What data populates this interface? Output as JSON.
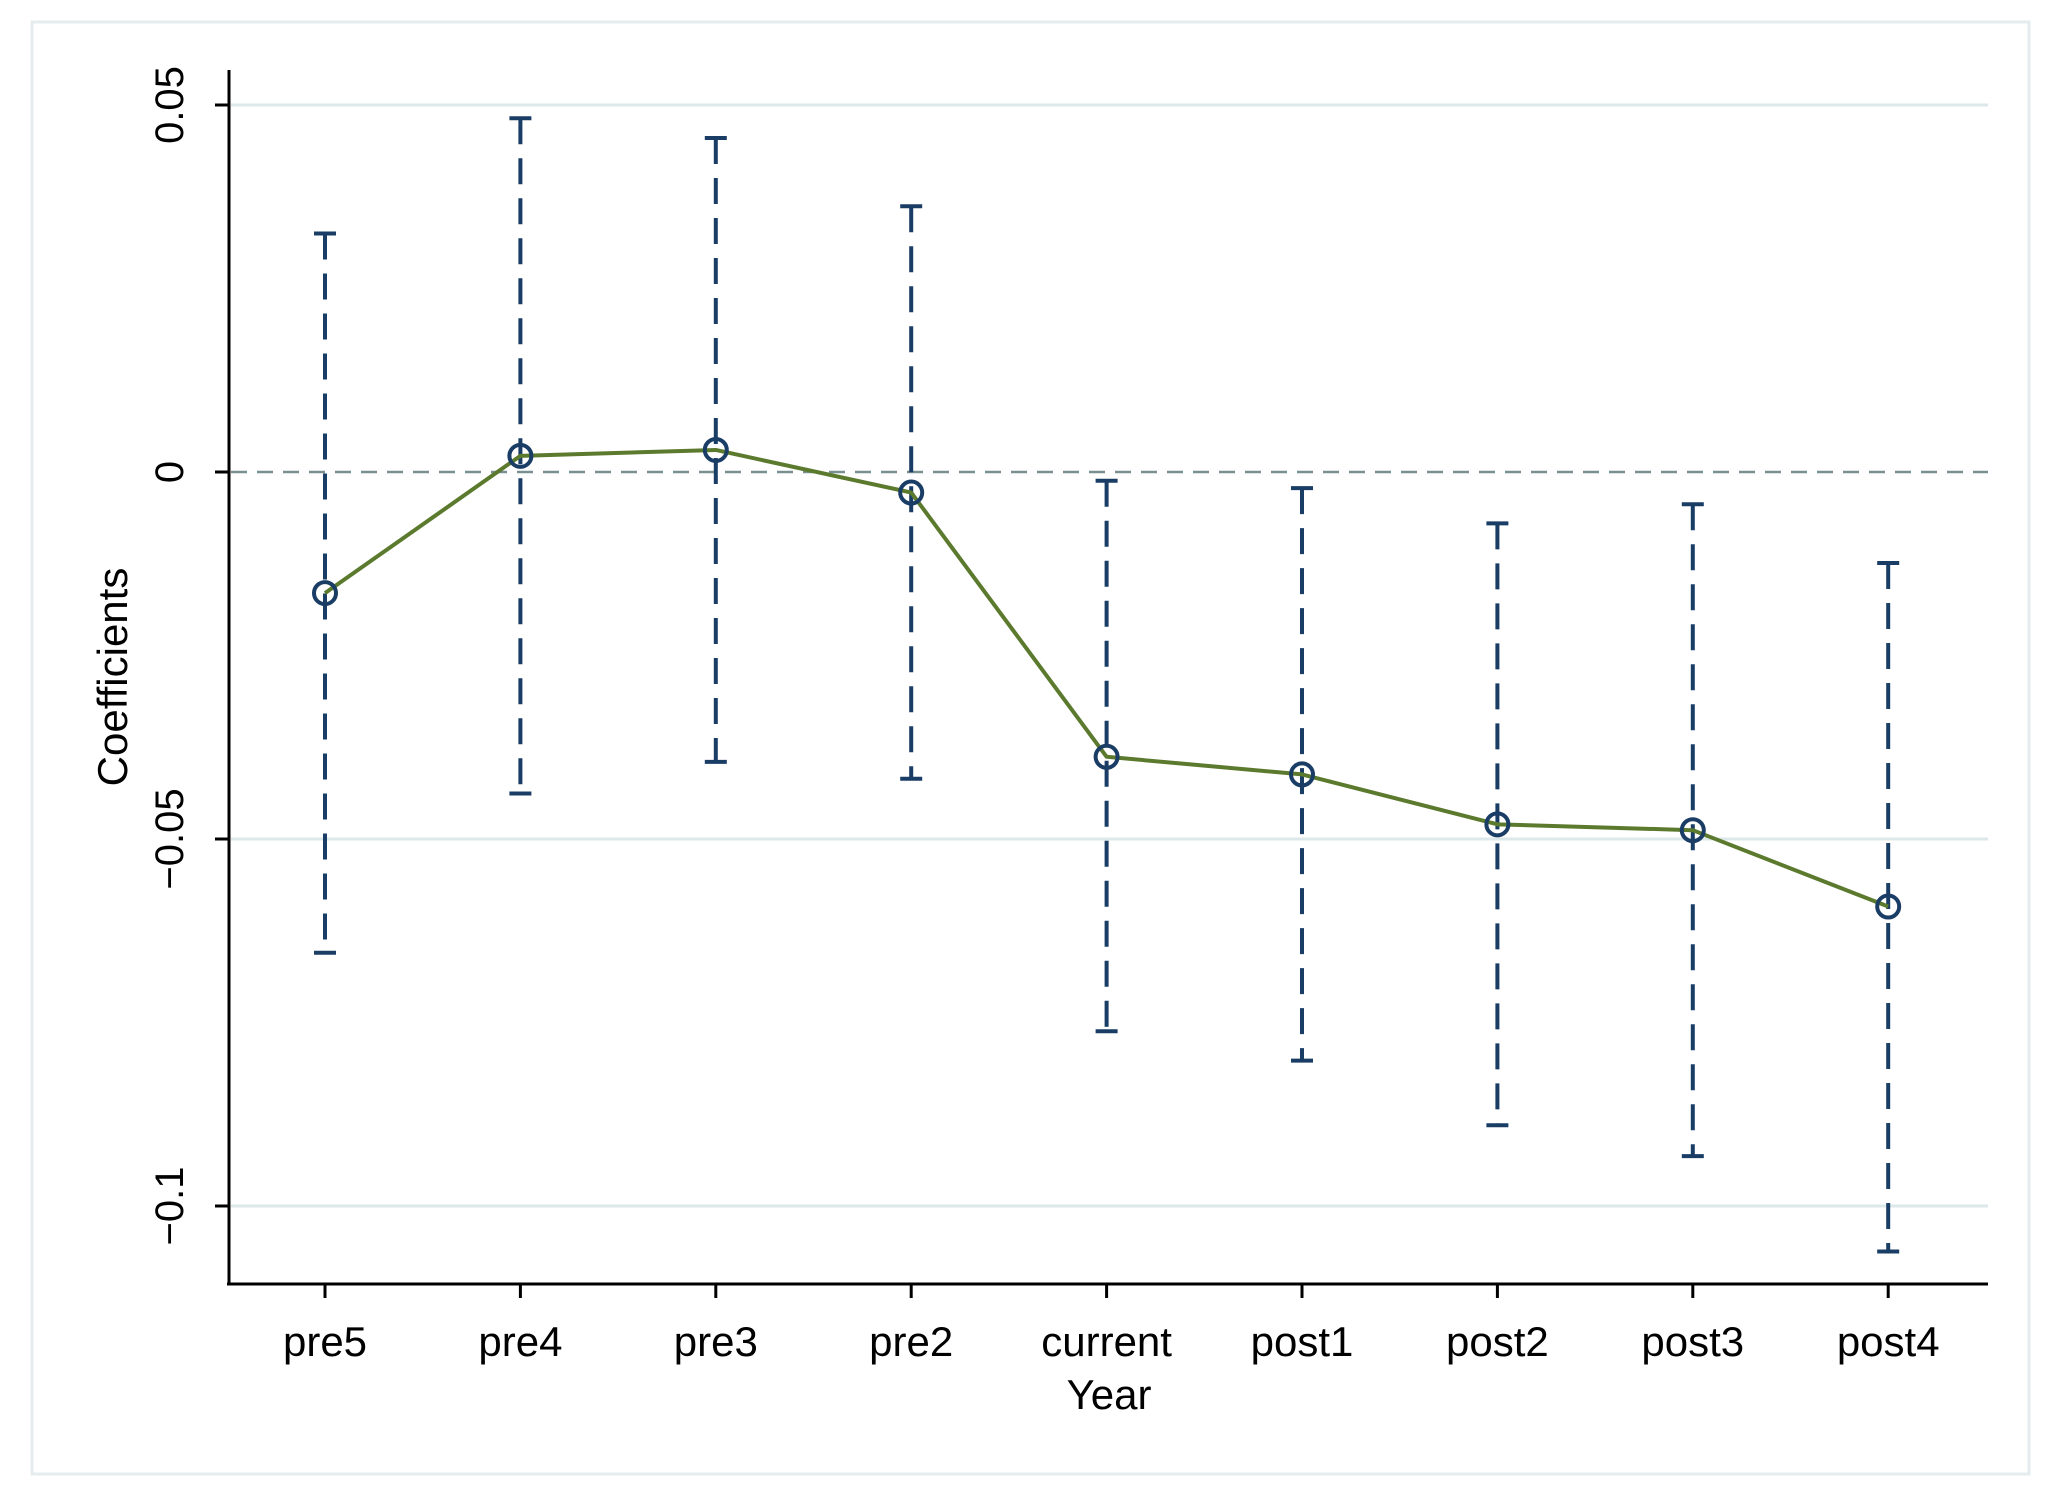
{
  "chart_data": {
    "type": "line",
    "title": "",
    "xlabel": "Year",
    "ylabel": "Coefficients",
    "categories": [
      "pre5",
      "pre4",
      "pre3",
      "pre2",
      "current",
      "post1",
      "post2",
      "post3",
      "post4"
    ],
    "series": [
      {
        "values": [
          -0.0165,
          0.0022,
          0.003,
          -0.0028,
          -0.0388,
          -0.0412,
          -0.048,
          -0.0488,
          -0.0592
        ],
        "ci_low": [
          -0.0655,
          -0.0438,
          -0.0395,
          -0.0418,
          -0.0762,
          -0.0802,
          -0.089,
          -0.0932,
          -0.1062
        ],
        "ci_high": [
          0.0325,
          0.0482,
          0.0455,
          0.0362,
          -0.0012,
          -0.0022,
          -0.007,
          -0.0044,
          -0.0124
        ]
      }
    ],
    "yticks": [
      0.05,
      0,
      -0.05,
      -0.1
    ],
    "ytick_labels": [
      "0.05",
      "0",
      "−0.05",
      "−0.1"
    ],
    "ylim": [
      -0.1105,
      0.0545
    ],
    "reference_line": 0,
    "grid": true,
    "colors": {
      "line": "#5b7a2e",
      "marker": "#1a3d66",
      "error_bar": "#1a3d66",
      "grid": "#dde8ea",
      "reference": "#7a8f92",
      "frame": "#e4ecee"
    }
  }
}
